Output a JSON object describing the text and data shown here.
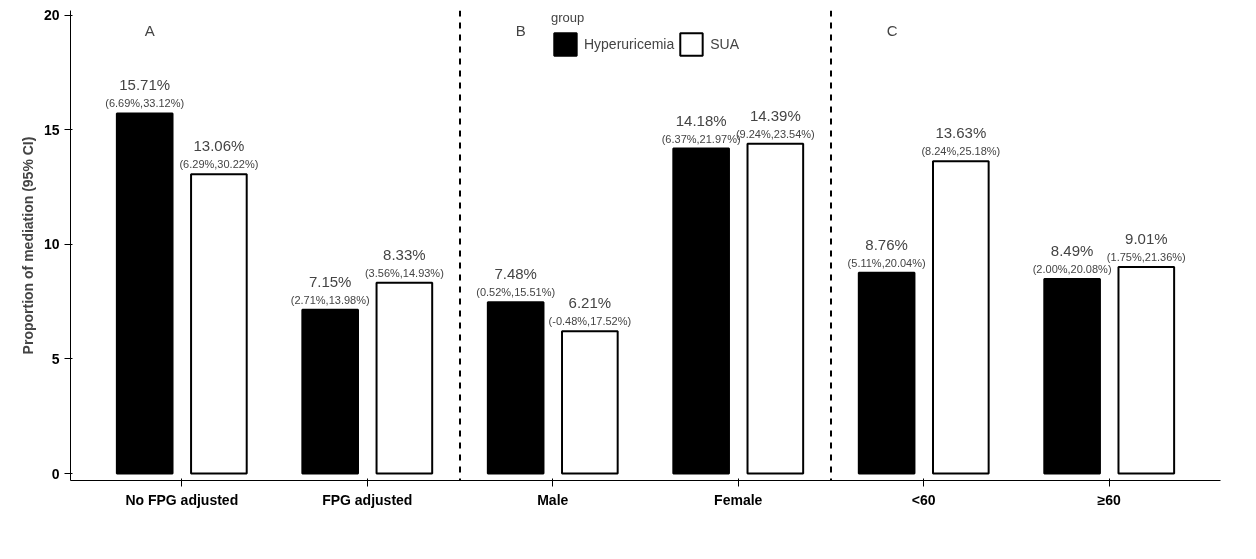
{
  "chart_data": {
    "type": "bar",
    "ylabel": "Proportion of mediation (95% CI)",
    "legend_title": "group",
    "legend": "top",
    "categories": [
      "No FPG adjusted",
      "FPG adjusted",
      "Male",
      "Female",
      "<60",
      "≥60"
    ],
    "series": [
      {
        "name": "Hyperuricemia",
        "color": "#000000",
        "values": [
          15.71,
          7.15,
          7.48,
          14.18,
          8.76,
          8.49
        ],
        "value_labels": [
          "15.71%\n(6.69%,33.12%)",
          "7.15%\n(2.71%,13.98%)",
          "7.48%\n(0.52%,15.51%)",
          "14.18%\n(6.37%,21.97%)",
          "8.76%\n(5.11%,20.04%)",
          "8.49%\n(2.00%,20.08%)"
        ]
      },
      {
        "name": "SUA",
        "color": "#ffffff",
        "values": [
          13.06,
          8.33,
          6.21,
          14.39,
          13.63,
          9.01
        ],
        "value_labels": [
          "13.06%\n(6.29%,30.22%)",
          "8.33%\n(3.56%,14.93%)",
          "6.21%\n(-0.48%,17.52%)",
          "14.39%\n(9.24%,23.54%)",
          "13.63%\n(8.24%,25.18%)",
          "9.01%\n(1.75%,21.36%)"
        ]
      }
    ],
    "ylim": [
      -0.3,
      20.2
    ],
    "yticks": [
      0,
      5,
      10,
      15,
      20
    ],
    "grid": false,
    "annotations": [
      "A",
      "B",
      "C"
    ]
  }
}
